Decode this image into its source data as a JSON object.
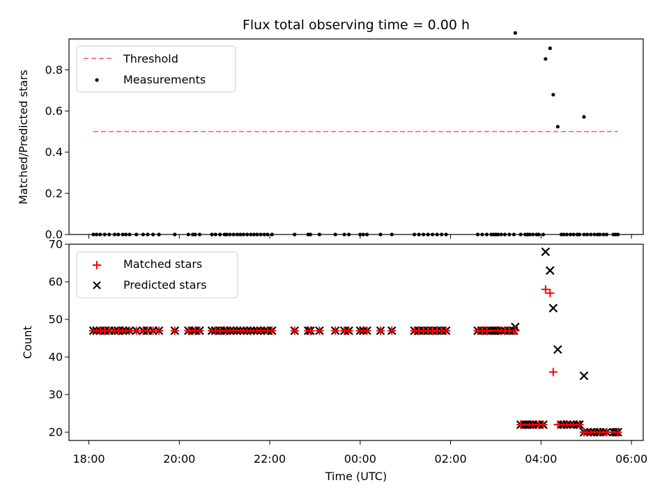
{
  "chart_data": {
    "title": "Flux total observing time = 0.00 h",
    "xlabel": "Time (UTC)",
    "x_ticks_hours": [
      18,
      20,
      22,
      24,
      26,
      28,
      30
    ],
    "x_tick_labels": [
      "18:00",
      "20:00",
      "22:00",
      "00:00",
      "02:00",
      "04:00",
      "06:00"
    ],
    "xlim_hours": [
      17.56,
      30.26
    ],
    "panels": [
      {
        "type": "line+scatter",
        "ylabel": "Matched/Predicted stars",
        "ylim": [
          0,
          0.95
        ],
        "yticks": [
          0,
          0.2,
          0.4,
          0.6,
          0.8
        ],
        "ytick_labels": [
          "0.0",
          "0.2",
          "0.4",
          "0.6",
          "0.8"
        ],
        "legend_position": "upper-left",
        "threshold": {
          "name": "Threshold",
          "value": 0.5,
          "x_range": [
            18.1,
            29.7
          ],
          "color": "#ff7f7f"
        },
        "measurements": {
          "name": "Measurements",
          "color": "#000000"
        }
      },
      {
        "type": "scatter",
        "ylabel": "Count",
        "ylim": [
          17.8,
          70
        ],
        "yticks": [
          20,
          30,
          40,
          50,
          60,
          70
        ],
        "ytick_labels": [
          "20",
          "30",
          "40",
          "50",
          "60",
          "70"
        ],
        "legend_position": "upper-left",
        "series": [
          {
            "name": "Matched stars",
            "marker": "plus",
            "color": "#ff0000"
          },
          {
            "name": "Predicted stars",
            "marker": "x",
            "color": "#000000"
          }
        ]
      }
    ],
    "zero_times": [
      18.1,
      18.17,
      18.25,
      18.35,
      18.45,
      18.57,
      18.65,
      18.75,
      18.82,
      18.9,
      19.05,
      19.2,
      19.3,
      19.42,
      19.55,
      19.9,
      20.2,
      20.3,
      20.35,
      20.45,
      20.72,
      20.8,
      20.9,
      21.0,
      21.05,
      21.12,
      21.2,
      21.28,
      21.35,
      21.42,
      21.5,
      21.58,
      21.65,
      21.72,
      21.8,
      21.88,
      21.95,
      22.05,
      22.55,
      22.85,
      22.9,
      23.1,
      23.45,
      23.65,
      23.75,
      24.0,
      24.07,
      24.15,
      24.45,
      24.7,
      25.2,
      25.3,
      25.4,
      25.5,
      25.6,
      25.7,
      25.8,
      25.9,
      26.6,
      26.7,
      26.8,
      26.9,
      26.95,
      27.0,
      27.05,
      27.12,
      27.2,
      27.3,
      27.4
    ],
    "matched_flat": [
      {
        "y": 47,
        "times": [
          18.1,
          18.17,
          18.25,
          18.35,
          18.45,
          18.57,
          18.65,
          18.75,
          18.82,
          18.9,
          19.05,
          19.2,
          19.3,
          19.42,
          19.55,
          19.9,
          20.2,
          20.3,
          20.35,
          20.45,
          20.72,
          20.8,
          20.9,
          21.0,
          21.05,
          21.12,
          21.2,
          21.28,
          21.35,
          21.42,
          21.5,
          21.58,
          21.65,
          21.72,
          21.8,
          21.88,
          21.95,
          22.05,
          22.55,
          22.85,
          22.9,
          23.1,
          23.45,
          23.65,
          23.75,
          24.0,
          24.07,
          24.15,
          24.45,
          24.7,
          25.2,
          25.3,
          25.4,
          25.5,
          25.6,
          25.7,
          25.8,
          25.9,
          26.6,
          26.7,
          26.8,
          26.9,
          26.95,
          27.0,
          27.05,
          27.12,
          27.2,
          27.3,
          27.4
        ]
      },
      {
        "y": 22,
        "times": [
          27.55,
          27.65,
          27.7,
          27.75,
          27.82,
          27.9,
          27.95,
          28.05,
          28.45,
          28.5,
          28.57,
          28.65,
          28.72,
          28.8,
          28.85
        ]
      },
      {
        "y": 20,
        "times": [
          28.95,
          29.02,
          29.1,
          29.18,
          29.25,
          29.3,
          29.38,
          29.45,
          29.6,
          29.65,
          29.7
        ]
      }
    ],
    "special_points": [
      {
        "time": 27.43,
        "matched": 47,
        "predicted": 48
      },
      {
        "time": 28.1,
        "matched": 58,
        "predicted": 68
      },
      {
        "time": 28.2,
        "matched": 57,
        "predicted": 63
      },
      {
        "time": 28.27,
        "matched": 36,
        "predicted": 53
      },
      {
        "time": 28.37,
        "matched": 22,
        "predicted": 42
      },
      {
        "time": 28.95,
        "matched": 20,
        "predicted": 35
      }
    ]
  }
}
